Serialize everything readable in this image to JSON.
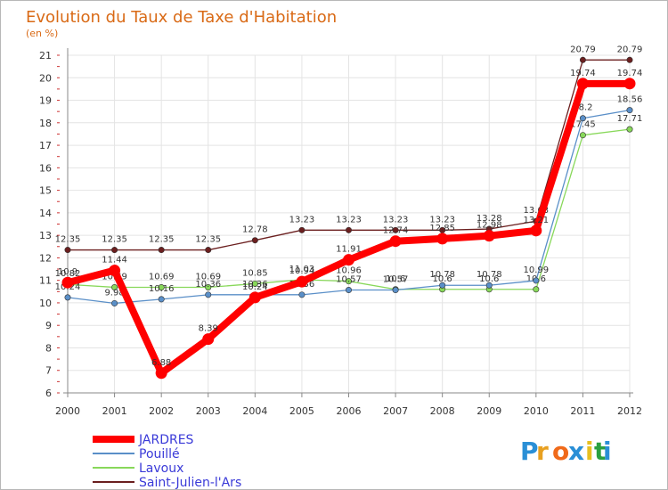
{
  "chart_data": {
    "type": "line",
    "title": "Evolution du Taux de Taxe d'Habitation",
    "subtitle": "(en %)",
    "xlabel": "",
    "ylabel": "(en %)",
    "x": [
      "2000",
      "2001",
      "2002",
      "2003",
      "2004",
      "2005",
      "2006",
      "2007",
      "2008",
      "2009",
      "2010",
      "2011",
      "2012"
    ],
    "y_ticks": [
      "6",
      "7",
      "8",
      "9",
      "10",
      "11",
      "12",
      "13",
      "14",
      "15",
      "16",
      "17",
      "18",
      "19",
      "20",
      "21"
    ],
    "ylim": [
      6,
      21
    ],
    "grid": true,
    "legend_position": "bottom-left",
    "series": [
      {
        "name": "Saint-Julien-l'Ars",
        "color": "#6b1f1f",
        "values": [
          12.35,
          12.35,
          12.35,
          12.35,
          12.78,
          13.23,
          13.23,
          13.23,
          13.23,
          13.28,
          13.63,
          20.79,
          20.79
        ],
        "labels": [
          "12.35",
          "12.35",
          "12.35",
          "12.35",
          "12.78",
          "13.23",
          "13.23",
          "13.23",
          "13.23",
          "13.28",
          "13.63",
          "20.79",
          "20.79"
        ]
      },
      {
        "name": "Lavoux",
        "color": "#88d85a",
        "values": [
          10.82,
          10.69,
          10.69,
          10.69,
          10.85,
          11.03,
          10.96,
          10.6,
          10.6,
          10.6,
          10.6,
          17.45,
          17.71
        ],
        "labels": [
          "10.82",
          "10.69",
          "10.69",
          "10.69",
          "10.85",
          "11.03",
          "10.96",
          "10.6",
          "10.6",
          "10.6",
          "10.6",
          "17.45",
          "17.71"
        ]
      },
      {
        "name": "Pouillé",
        "color": "#5a8fc8",
        "values": [
          10.24,
          9.98,
          10.16,
          10.36,
          10.36,
          10.36,
          10.57,
          10.57,
          10.78,
          10.78,
          10.99,
          18.2,
          18.56
        ],
        "labels": [
          "10.24",
          "9.98",
          "10.16",
          "10.36",
          "10.36",
          "10.36",
          "10.57",
          "10.57",
          "10.78",
          "10.78",
          "10.99",
          "18.2",
          "18.56"
        ]
      },
      {
        "name": "JARDRES",
        "color": "#ff0000",
        "values": [
          10.9,
          11.44,
          6.88,
          8.39,
          10.24,
          10.94,
          11.91,
          12.74,
          12.85,
          12.98,
          13.21,
          19.74,
          19.74
        ],
        "labels": [
          "10.9",
          "11.44",
          "6.88",
          "8.39",
          "10.24",
          "10.94",
          "11.91",
          "12.74",
          "12.85",
          "12.98",
          "13.21",
          "19.74",
          "19.74"
        ]
      }
    ]
  },
  "legend": [
    {
      "label": "JARDRES",
      "color": "#ff0000"
    },
    {
      "label": "Pouillé",
      "color": "#5a8fc8"
    },
    {
      "label": "Lavoux",
      "color": "#88d85a"
    },
    {
      "label": "Saint-Julien-l'Ars",
      "color": "#6b1f1f"
    }
  ],
  "logo": {
    "text": "Proxiti"
  }
}
